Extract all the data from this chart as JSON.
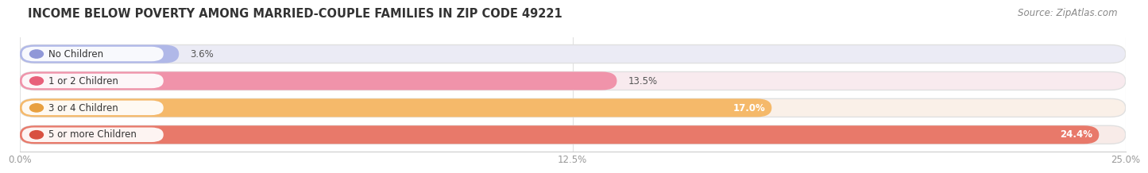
{
  "title": "INCOME BELOW POVERTY AMONG MARRIED-COUPLE FAMILIES IN ZIP CODE 49221",
  "source": "Source: ZipAtlas.com",
  "categories": [
    "No Children",
    "1 or 2 Children",
    "3 or 4 Children",
    "5 or more Children"
  ],
  "values": [
    3.6,
    13.5,
    17.0,
    24.4
  ],
  "value_labels": [
    "3.6%",
    "13.5%",
    "17.0%",
    "24.4%"
  ],
  "bar_colors": [
    "#b0b8e8",
    "#f093aa",
    "#f5b96a",
    "#e8796a"
  ],
  "bar_bg_colors": [
    "#ebebf5",
    "#f8eaee",
    "#faf0e8",
    "#f8ebe8"
  ],
  "label_dot_colors": [
    "#9098d8",
    "#e8607a",
    "#e8a040",
    "#d85040"
  ],
  "value_label_inside": [
    false,
    false,
    true,
    true
  ],
  "xlim": [
    0,
    25.0
  ],
  "xticks": [
    0.0,
    12.5,
    25.0
  ],
  "xtick_labels": [
    "0.0%",
    "12.5%",
    "25.0%"
  ],
  "title_fontsize": 10.5,
  "source_fontsize": 8.5,
  "bar_label_fontsize": 8.5,
  "category_fontsize": 8.5,
  "background_color": "#ffffff"
}
